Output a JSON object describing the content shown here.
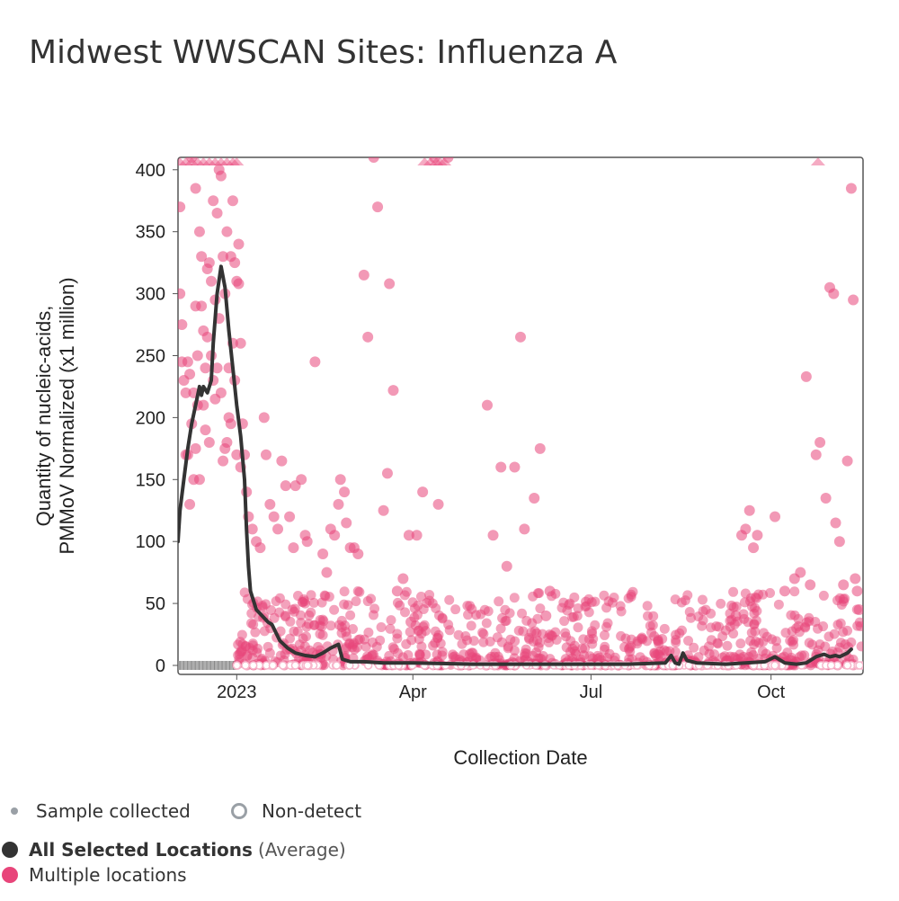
{
  "title": "Midwest WWSCAN Sites: Influenza A",
  "legend": {
    "sample_collected": "Sample collected",
    "non_detect": "Non-detect",
    "all_selected": "All Selected Locations",
    "average": "(Average)",
    "multiple_locations": "Multiple locations"
  },
  "colors": {
    "points": "#e8457a",
    "line": "#333333",
    "axis": "#555555",
    "marker_gray": "#9aa0a6"
  },
  "chart_data": {
    "type": "scatter",
    "title": "Midwest WWSCAN Sites: Influenza A",
    "xlabel": "Collection Date",
    "ylabel_lines": [
      "Quantity of nucleic-acids,",
      "PMMoV Normalized (x1 million)"
    ],
    "x_axis": {
      "domain_days": [
        -30,
        320
      ],
      "ticks": [
        {
          "day": 0,
          "label": "2023"
        },
        {
          "day": 90,
          "label": "Apr"
        },
        {
          "day": 181,
          "label": "Jul"
        },
        {
          "day": 273,
          "label": "Oct"
        }
      ]
    },
    "y_axis": {
      "range": [
        0,
        410
      ],
      "ticks": [
        0,
        50,
        100,
        150,
        200,
        250,
        300,
        350,
        400
      ]
    },
    "cap_value": 410,
    "capped_days": [
      -29,
      -26,
      -23,
      -20,
      -17,
      -14,
      -11,
      -8,
      -5,
      -2,
      0,
      96,
      99,
      102,
      104,
      106,
      297
    ],
    "average_series": {
      "name": "All Selected Locations (Average)",
      "points": [
        [
          -30,
          100
        ],
        [
          -29,
          125
        ],
        [
          -27,
          150
        ],
        [
          -25,
          175
        ],
        [
          -23,
          195
        ],
        [
          -21,
          210
        ],
        [
          -19,
          225
        ],
        [
          -18,
          218
        ],
        [
          -17,
          225
        ],
        [
          -15,
          220
        ],
        [
          -13,
          230
        ],
        [
          -12,
          260
        ],
        [
          -10,
          300
        ],
        [
          -8,
          322
        ],
        [
          -6,
          305
        ],
        [
          -4,
          270
        ],
        [
          -2,
          240
        ],
        [
          0,
          210
        ],
        [
          2,
          185
        ],
        [
          4,
          150
        ],
        [
          5,
          110
        ],
        [
          6,
          80
        ],
        [
          7,
          60
        ],
        [
          10,
          45
        ],
        [
          13,
          40
        ],
        [
          16,
          35
        ],
        [
          18,
          33
        ],
        [
          22,
          20
        ],
        [
          26,
          14
        ],
        [
          30,
          10
        ],
        [
          35,
          8
        ],
        [
          40,
          7
        ],
        [
          44,
          10
        ],
        [
          48,
          14
        ],
        [
          52,
          17
        ],
        [
          54,
          5
        ],
        [
          58,
          3
        ],
        [
          65,
          3
        ],
        [
          75,
          2
        ],
        [
          90,
          2
        ],
        [
          120,
          1
        ],
        [
          150,
          1
        ],
        [
          180,
          1
        ],
        [
          200,
          1
        ],
        [
          219,
          2
        ],
        [
          222,
          8
        ],
        [
          224,
          2
        ],
        [
          226,
          1
        ],
        [
          228,
          10
        ],
        [
          230,
          4
        ],
        [
          235,
          2
        ],
        [
          250,
          1
        ],
        [
          270,
          3
        ],
        [
          275,
          7
        ],
        [
          280,
          2
        ],
        [
          286,
          1
        ],
        [
          291,
          2
        ],
        [
          296,
          7
        ],
        [
          300,
          9
        ],
        [
          303,
          7
        ],
        [
          306,
          8
        ],
        [
          308,
          7
        ],
        [
          312,
          10
        ],
        [
          314,
          13
        ]
      ]
    },
    "sample_series": {
      "name": "Multiple locations",
      "values": [
        [
          -29,
          370
        ],
        [
          -29,
          300
        ],
        [
          -28,
          275
        ],
        [
          -28,
          245
        ],
        [
          -27,
          230
        ],
        [
          -26,
          220
        ],
        [
          -26,
          170
        ],
        [
          -25,
          245
        ],
        [
          -25,
          170
        ],
        [
          -24,
          235
        ],
        [
          -24,
          130
        ],
        [
          -23,
          410
        ],
        [
          -23,
          195
        ],
        [
          -22,
          220
        ],
        [
          -22,
          150
        ],
        [
          -21,
          385
        ],
        [
          -21,
          290
        ],
        [
          -21,
          175
        ],
        [
          -20,
          250
        ],
        [
          -20,
          210
        ],
        [
          -19,
          350
        ],
        [
          -19,
          150
        ],
        [
          -18,
          330
        ],
        [
          -18,
          290
        ],
        [
          -17,
          270
        ],
        [
          -17,
          210
        ],
        [
          -16,
          240
        ],
        [
          -16,
          190
        ],
        [
          -15,
          320
        ],
        [
          -15,
          265
        ],
        [
          -14,
          325
        ],
        [
          -14,
          180
        ],
        [
          -13,
          310
        ],
        [
          -13,
          250
        ],
        [
          -12,
          375
        ],
        [
          -12,
          230
        ],
        [
          -11,
          295
        ],
        [
          -11,
          215
        ],
        [
          -10,
          365
        ],
        [
          -10,
          240
        ],
        [
          -9,
          400
        ],
        [
          -9,
          280
        ],
        [
          -8,
          395
        ],
        [
          -8,
          220
        ],
        [
          -7,
          330
        ],
        [
          -7,
          165
        ],
        [
          -6,
          300
        ],
        [
          -6,
          175
        ],
        [
          -5,
          350
        ],
        [
          -5,
          180
        ],
        [
          -4,
          240
        ],
        [
          -4,
          200
        ],
        [
          -3,
          330
        ],
        [
          -3,
          195
        ],
        [
          -2,
          375
        ],
        [
          -2,
          260
        ],
        [
          -1,
          325
        ],
        [
          -1,
          230
        ],
        [
          0,
          310
        ],
        [
          0,
          170
        ],
        [
          1,
          340
        ],
        [
          1,
          308
        ],
        [
          2,
          260
        ],
        [
          2,
          160
        ],
        [
          3,
          195
        ],
        [
          4,
          170
        ],
        [
          5,
          140
        ],
        [
          6,
          120
        ],
        [
          8,
          110
        ],
        [
          10,
          100
        ],
        [
          12,
          95
        ],
        [
          14,
          200
        ],
        [
          15,
          170
        ],
        [
          17,
          130
        ],
        [
          19,
          120
        ],
        [
          21,
          110
        ],
        [
          23,
          165
        ],
        [
          25,
          145
        ],
        [
          27,
          120
        ],
        [
          29,
          95
        ],
        [
          30,
          145
        ],
        [
          33,
          150
        ],
        [
          35,
          105
        ],
        [
          36,
          100
        ],
        [
          40,
          245
        ],
        [
          44,
          90
        ],
        [
          46,
          75
        ],
        [
          48,
          110
        ],
        [
          50,
          105
        ],
        [
          52,
          130
        ],
        [
          53,
          150
        ],
        [
          55,
          140
        ],
        [
          56,
          115
        ],
        [
          58,
          95
        ],
        [
          60,
          95
        ],
        [
          62,
          90
        ],
        [
          65,
          315
        ],
        [
          67,
          265
        ],
        [
          70,
          410
        ],
        [
          72,
          370
        ],
        [
          75,
          125
        ],
        [
          77,
          155
        ],
        [
          78,
          308
        ],
        [
          80,
          222
        ],
        [
          82,
          60
        ],
        [
          85,
          70
        ],
        [
          88,
          105
        ],
        [
          89,
          35
        ],
        [
          92,
          105
        ],
        [
          95,
          140
        ],
        [
          101,
          410
        ],
        [
          103,
          130
        ],
        [
          108,
          410
        ],
        [
          128,
          210
        ],
        [
          131,
          105
        ],
        [
          135,
          160
        ],
        [
          138,
          80
        ],
        [
          142,
          160
        ],
        [
          145,
          265
        ],
        [
          147,
          110
        ],
        [
          152,
          135
        ],
        [
          155,
          175
        ],
        [
          158,
          40
        ],
        [
          160,
          60
        ],
        [
          255,
          40
        ],
        [
          258,
          105
        ],
        [
          260,
          110
        ],
        [
          262,
          125
        ],
        [
          264,
          95
        ],
        [
          266,
          105
        ],
        [
          275,
          120
        ],
        [
          280,
          60
        ],
        [
          285,
          70
        ],
        [
          288,
          75
        ],
        [
          291,
          233
        ],
        [
          293,
          65
        ],
        [
          296,
          170
        ],
        [
          298,
          180
        ],
        [
          301,
          135
        ],
        [
          303,
          305
        ],
        [
          305,
          300
        ],
        [
          306,
          115
        ],
        [
          308,
          100
        ],
        [
          310,
          65
        ],
        [
          312,
          165
        ],
        [
          314,
          385
        ],
        [
          315,
          295
        ],
        [
          316,
          70
        ],
        [
          317,
          60
        ],
        [
          318,
          45
        ]
      ]
    },
    "dense_band": {
      "x_range": [
        0,
        320
      ],
      "y_range": [
        0,
        60
      ]
    }
  }
}
